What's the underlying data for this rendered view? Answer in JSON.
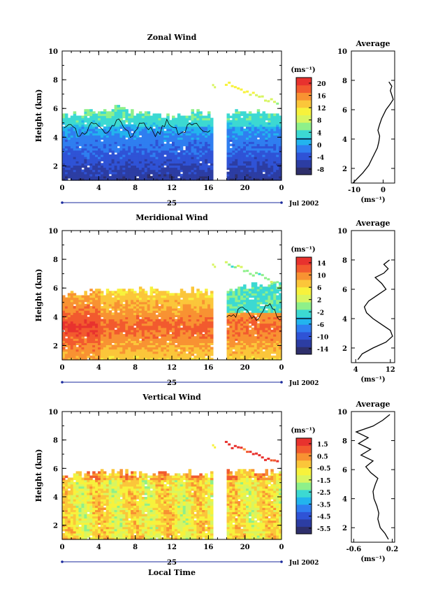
{
  "figure": {
    "x_axis_title": "Local Time",
    "y_axis_title": "Height (km)",
    "unit_label": "(ms⁻¹)",
    "date_label": "Jul 2002",
    "day_label": "25",
    "average_title": "Average"
  },
  "colormap": [
    "#2e2f6b",
    "#2c3da3",
    "#2f53d6",
    "#2f7ef0",
    "#22b4ee",
    "#3cd9d2",
    "#8ef08a",
    "#d8f560",
    "#f7f23c",
    "#fbc63a",
    "#f89232",
    "#f25a2e",
    "#e8322e"
  ],
  "chart_data": [
    {
      "type": "heatmap",
      "title": "Zonal Wind",
      "x_ticks": [
        "0",
        "4",
        "8",
        "12",
        "16",
        "20",
        "0"
      ],
      "x_tick_values": [
        0,
        4,
        8,
        12,
        16,
        20,
        24
      ],
      "xlim": [
        0,
        24
      ],
      "y_ticks": [
        2,
        4,
        6,
        8,
        10
      ],
      "ylim": [
        1,
        10
      ],
      "colorbar": {
        "ticks": [
          "20",
          "16",
          "12",
          "8",
          "4",
          "0",
          "-4",
          "-8"
        ],
        "range": [
          -10,
          22
        ]
      },
      "data_gap": [
        16.6,
        17.8
      ],
      "top_by_time": [
        [
          0,
          5.4
        ],
        [
          3,
          5.7
        ],
        [
          6,
          5.9
        ],
        [
          9,
          5.6
        ],
        [
          12,
          5.4
        ],
        [
          14,
          5.6
        ],
        [
          16.6,
          5.5
        ],
        [
          17.8,
          5.6
        ],
        [
          20,
          5.8
        ],
        [
          24,
          5.5
        ]
      ],
      "profile": [
        [
          -10.5,
          1.0
        ],
        [
          -9,
          1.3
        ],
        [
          -7,
          1.7
        ],
        [
          -5,
          2.2
        ],
        [
          -4,
          2.6
        ],
        [
          -3,
          3.0
        ],
        [
          -2,
          3.4
        ],
        [
          -1.5,
          3.8
        ],
        [
          -1.2,
          4.2
        ],
        [
          -1.8,
          4.6
        ],
        [
          -1.2,
          5.0
        ],
        [
          -0.5,
          5.4
        ],
        [
          1.0,
          6.0
        ],
        [
          2.5,
          6.4
        ],
        [
          3.5,
          6.7
        ],
        [
          3.0,
          7.0
        ],
        [
          2.5,
          7.3
        ],
        [
          3.0,
          7.6
        ],
        [
          2.0,
          7.9
        ]
      ],
      "profile_ticks": [
        "-10",
        "0"
      ],
      "profile_xlim": [
        -11,
        4
      ],
      "contour_level": 0
    },
    {
      "type": "heatmap",
      "title": "Meridional Wind",
      "x_ticks": [
        "0",
        "4",
        "8",
        "12",
        "16",
        "20",
        "0"
      ],
      "x_tick_values": [
        0,
        4,
        8,
        12,
        16,
        20,
        24
      ],
      "xlim": [
        0,
        24
      ],
      "y_ticks": [
        2,
        4,
        6,
        8,
        10
      ],
      "ylim": [
        1,
        10
      ],
      "colorbar": {
        "ticks": [
          "14",
          "10",
          "6",
          "2",
          "-2",
          "-6",
          "-10",
          "-14"
        ],
        "range": [
          -16,
          16
        ]
      },
      "data_gap": [
        16.6,
        17.8
      ],
      "top_by_time": [
        [
          0,
          5.5
        ],
        [
          3,
          5.6
        ],
        [
          6,
          5.8
        ],
        [
          9,
          5.9
        ],
        [
          12,
          5.7
        ],
        [
          14,
          5.8
        ],
        [
          16.6,
          5.6
        ],
        [
          17.8,
          5.8
        ],
        [
          20,
          6.0
        ],
        [
          24,
          6.2
        ]
      ],
      "profile": [
        [
          4.5,
          1.2
        ],
        [
          5.5,
          1.6
        ],
        [
          8,
          2.0
        ],
        [
          11,
          2.4
        ],
        [
          12.5,
          2.8
        ],
        [
          12,
          3.2
        ],
        [
          10,
          3.6
        ],
        [
          8,
          4.0
        ],
        [
          6.5,
          4.4
        ],
        [
          6,
          4.8
        ],
        [
          7,
          5.2
        ],
        [
          9,
          5.6
        ],
        [
          11,
          6.0
        ],
        [
          10,
          6.4
        ],
        [
          8.5,
          6.8
        ],
        [
          10.5,
          7.1
        ],
        [
          11.5,
          7.4
        ],
        [
          10.5,
          7.7
        ],
        [
          11.8,
          8.0
        ]
      ],
      "profile_ticks": [
        "4",
        "12"
      ],
      "profile_xlim": [
        3,
        13
      ],
      "contour_level": 0
    },
    {
      "type": "heatmap",
      "title": "Vertical Wind",
      "x_ticks": [
        "0",
        "4",
        "8",
        "12",
        "16",
        "20",
        "0"
      ],
      "x_tick_values": [
        0,
        4,
        8,
        12,
        16,
        20,
        24
      ],
      "xlim": [
        0,
        24
      ],
      "y_ticks": [
        2,
        4,
        6,
        8,
        10
      ],
      "ylim": [
        1,
        10
      ],
      "colorbar": {
        "ticks": [
          "1.5",
          "0.5",
          "-0.5",
          "-1.5",
          "-2.5",
          "-3.5",
          "-4.5",
          "-5.5"
        ],
        "range": [
          -6,
          2
        ]
      },
      "data_gap": [
        16.6,
        17.8
      ],
      "top_by_time": [
        [
          0,
          5.5
        ],
        [
          3,
          5.6
        ],
        [
          6,
          5.7
        ],
        [
          9,
          5.6
        ],
        [
          12,
          5.5
        ],
        [
          14,
          5.6
        ],
        [
          16.6,
          5.5
        ],
        [
          17.8,
          5.6
        ],
        [
          20,
          5.7
        ],
        [
          24,
          5.6
        ]
      ],
      "profile": [
        [
          0.12,
          1.2
        ],
        [
          0.05,
          1.6
        ],
        [
          -0.05,
          2.0
        ],
        [
          -0.1,
          2.6
        ],
        [
          -0.08,
          3.0
        ],
        [
          -0.12,
          3.5
        ],
        [
          -0.18,
          4.0
        ],
        [
          -0.2,
          4.5
        ],
        [
          -0.15,
          5.0
        ],
        [
          -0.1,
          5.4
        ],
        [
          -0.25,
          5.8
        ],
        [
          -0.35,
          6.2
        ],
        [
          -0.2,
          6.6
        ],
        [
          -0.45,
          7.0
        ],
        [
          -0.25,
          7.4
        ],
        [
          -0.5,
          7.8
        ],
        [
          -0.3,
          8.2
        ],
        [
          -0.55,
          8.6
        ],
        [
          -0.2,
          9.0
        ],
        [
          0.0,
          9.4
        ],
        [
          0.15,
          9.8
        ]
      ],
      "profile_ticks": [
        "-0.6",
        "0.2"
      ],
      "profile_xlim": [
        -0.65,
        0.25
      ],
      "contour_level": null
    }
  ]
}
